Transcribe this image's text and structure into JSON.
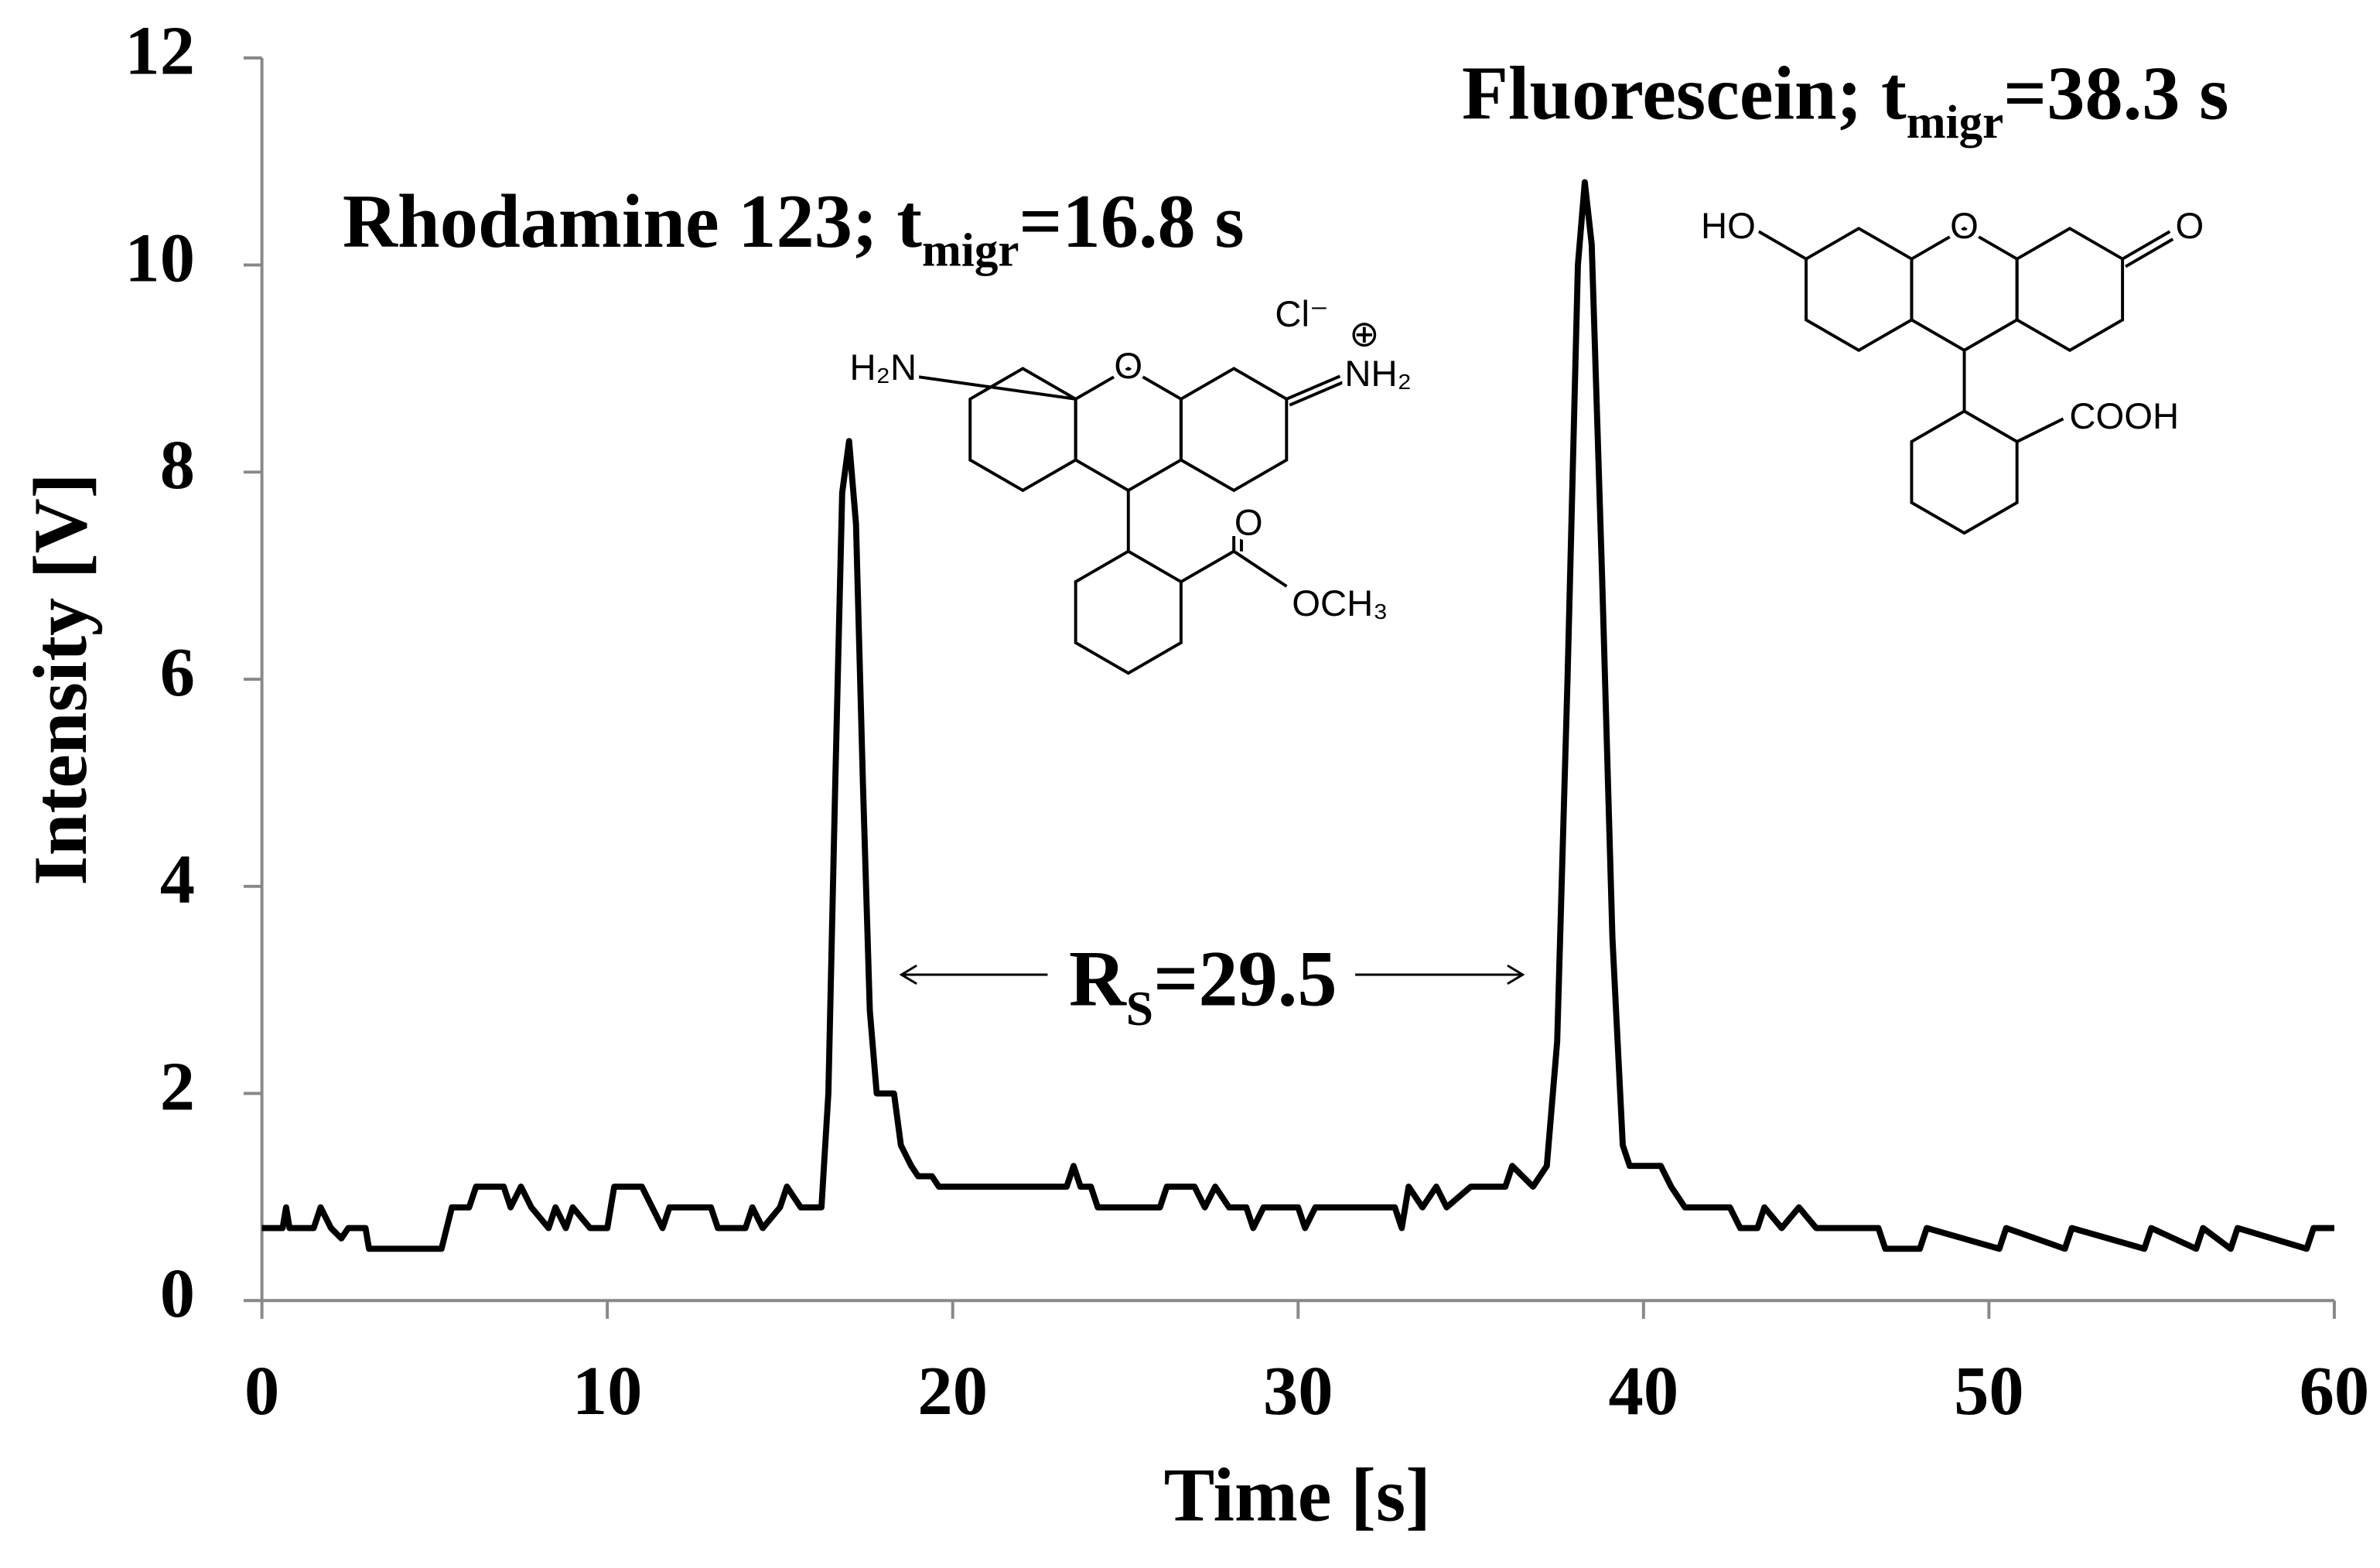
{
  "chart_data": {
    "type": "line",
    "xlabel": "Time [s]",
    "ylabel": "Intensity [V]",
    "xlim": [
      0,
      60
    ],
    "xticks": [
      0,
      10,
      20,
      30,
      40,
      50,
      60
    ],
    "ylim": [
      0,
      12
    ],
    "yticks": [
      0,
      2,
      4,
      6,
      8,
      10,
      12
    ],
    "color": "#000000",
    "x": [
      0,
      0.6,
      0.7,
      0.8,
      1.5,
      1.7,
      2.0,
      2.3,
      2.5,
      3.0,
      3.1,
      5.2,
      5.5,
      6.0,
      6.2,
      7.0,
      7.2,
      7.5,
      7.8,
      8.3,
      8.5,
      8.8,
      9.0,
      9.5,
      10.0,
      10.2,
      11.0,
      11.3,
      11.6,
      11.8,
      13.0,
      13.2,
      14.0,
      14.2,
      14.5,
      15.0,
      15.2,
      15.6,
      16.2,
      16.4,
      16.6,
      16.8,
      17.0,
      17.2,
      17.4,
      17.6,
      17.8,
      18.3,
      18.5,
      18.8,
      19.0,
      19.4,
      19.6,
      23.3,
      23.5,
      23.7,
      24.0,
      24.2,
      26.0,
      26.2,
      27.0,
      27.3,
      27.6,
      28.0,
      28.5,
      28.7,
      29.0,
      30.0,
      30.2,
      30.5,
      32.8,
      33.0,
      33.2,
      33.6,
      34.0,
      34.3,
      35.0,
      36.0,
      36.2,
      36.8,
      37.2,
      37.5,
      37.8,
      38.1,
      38.3,
      38.5,
      38.8,
      39.1,
      39.4,
      39.6,
      40.5,
      40.8,
      41.2,
      42.5,
      42.8,
      43.3,
      43.5,
      44.0,
      44.5,
      45.0,
      46.8,
      47.0,
      48.0,
      48.2,
      50.3,
      50.5,
      52.2,
      52.4,
      54.5,
      54.7,
      56.0,
      56.2,
      57.0,
      57.2,
      59.2,
      59.4,
      60.0
    ],
    "values": [
      0.7,
      0.7,
      0.9,
      0.7,
      0.7,
      0.9,
      0.7,
      0.6,
      0.7,
      0.7,
      0.5,
      0.5,
      0.9,
      0.9,
      1.1,
      1.1,
      0.9,
      1.1,
      0.9,
      0.7,
      0.9,
      0.7,
      0.9,
      0.7,
      0.7,
      1.1,
      1.1,
      0.9,
      0.7,
      0.9,
      0.9,
      0.7,
      0.7,
      0.9,
      0.7,
      0.9,
      1.1,
      0.9,
      0.9,
      2.0,
      5.0,
      7.8,
      8.3,
      7.5,
      5.0,
      2.8,
      2.0,
      2.0,
      1.5,
      1.3,
      1.2,
      1.2,
      1.1,
      1.1,
      1.3,
      1.1,
      1.1,
      0.9,
      0.9,
      1.1,
      1.1,
      0.9,
      1.1,
      0.9,
      0.9,
      0.7,
      0.9,
      0.9,
      0.7,
      0.9,
      0.9,
      0.7,
      1.1,
      0.9,
      1.1,
      0.9,
      1.1,
      1.1,
      1.3,
      1.1,
      1.3,
      2.5,
      6.0,
      10.0,
      10.8,
      10.2,
      7.0,
      3.5,
      1.5,
      1.3,
      1.3,
      1.1,
      0.9,
      0.9,
      0.7,
      0.7,
      0.9,
      0.7,
      0.9,
      0.7,
      0.7,
      0.5,
      0.5,
      0.7,
      0.5,
      0.7,
      0.5,
      0.7,
      0.5,
      0.7,
      0.5,
      0.7,
      0.5,
      0.7,
      0.5,
      0.7,
      0.7
    ],
    "annotations": [
      {
        "text": "Rhodamine 123; t",
        "sub": "migr",
        "tail": "=16.8 s"
      },
      {
        "text": "Fluorescein; t",
        "sub": "migr",
        "tail": "=38.3 s"
      },
      {
        "text": "R",
        "sub": "S",
        "tail": "=29.5"
      }
    ],
    "structure_labels": [
      [
        "H₂N",
        "O",
        "NH₂",
        "⊕",
        "Cl⁻",
        "O",
        "OCH₃"
      ],
      [
        "HO",
        "O",
        "O",
        "COOH"
      ]
    ]
  }
}
